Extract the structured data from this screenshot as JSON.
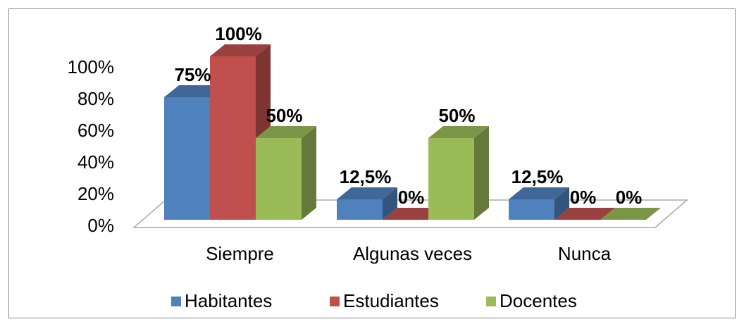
{
  "chart_data": {
    "type": "bar3d",
    "categories": [
      "Siempre",
      "Algunas veces",
      "Nunca"
    ],
    "series": [
      {
        "name": "Habitantes",
        "color": "#4f81bd",
        "values": [
          75,
          12.5,
          12.5
        ],
        "value_labels": [
          "75%",
          "12,5%",
          "12,5%"
        ]
      },
      {
        "name": "Estudiantes",
        "color": "#c0504d",
        "values": [
          100,
          0,
          0
        ],
        "value_labels": [
          "100%",
          "0%",
          "0%"
        ]
      },
      {
        "name": "Docentes",
        "color": "#9bbb59",
        "values": [
          50,
          50,
          0
        ],
        "value_labels": [
          "50%",
          "50%",
          "0%"
        ]
      }
    ],
    "ylim": [
      0,
      100
    ],
    "yticks": [
      {
        "value": 0,
        "label": "0%"
      },
      {
        "value": 20,
        "label": "20%"
      },
      {
        "value": 40,
        "label": "40%"
      },
      {
        "value": 60,
        "label": "60%"
      },
      {
        "value": 80,
        "label": "80%"
      },
      {
        "value": 100,
        "label": "100%"
      }
    ],
    "legend": "bottom"
  }
}
